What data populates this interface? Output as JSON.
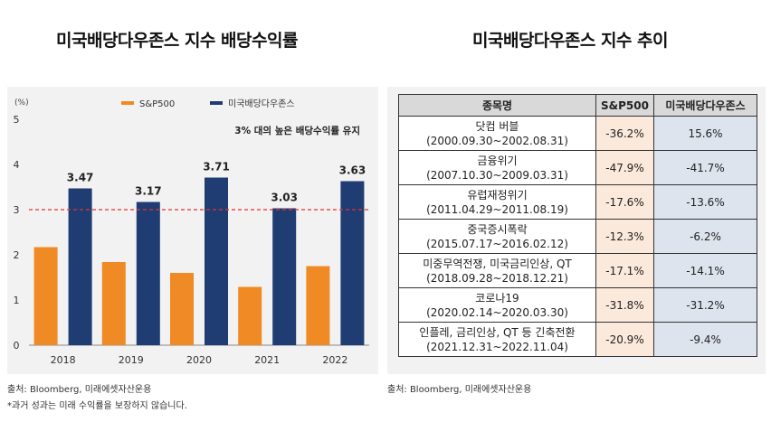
{
  "titles": {
    "left": "미국배당다우존스 지수 배당수익률",
    "right": "미국배당다우존스 지수 추이"
  },
  "colors": {
    "sp500": "#f08a24",
    "dow": "#1f3c73",
    "threshold": "#e3342f",
    "panel": "#f2f2f2"
  },
  "chart_data": {
    "type": "bar",
    "unit_label": "(%)",
    "categories": [
      "2018",
      "2019",
      "2020",
      "2021",
      "2022"
    ],
    "series": [
      {
        "name": "S&P500",
        "values": [
          2.17,
          1.84,
          1.6,
          1.29,
          1.75
        ],
        "show_labels": false
      },
      {
        "name": "미국배당다우존스",
        "values": [
          3.47,
          3.17,
          3.71,
          3.03,
          3.63
        ],
        "show_labels": true
      }
    ],
    "y_ticks": [
      0,
      1,
      2,
      3,
      4,
      5
    ],
    "ylim": [
      0,
      5
    ],
    "threshold": 3,
    "annotation": "3% 대의 높은 배당수익률 유지",
    "legend_position": "top"
  },
  "table": {
    "headers": [
      "종목명",
      "S&P500",
      "미국배당다우존스"
    ],
    "rows": [
      {
        "event": "닷컴 버블",
        "period": "(2000.09.30~2002.08.31)",
        "sp500": "-36.2%",
        "dow": "15.6%"
      },
      {
        "event": "금융위기",
        "period": "(2007.10.30~2009.03.31)",
        "sp500": "-47.9%",
        "dow": "-41.7%"
      },
      {
        "event": "유럽재정위기",
        "period": "(2011.04.29~2011.08.19)",
        "sp500": "-17.6%",
        "dow": "-13.6%"
      },
      {
        "event": "중국증시폭락",
        "period": "(2015.07.17~2016.02.12)",
        "sp500": "-12.3%",
        "dow": "-6.2%"
      },
      {
        "event": "미중무역전쟁, 미국금리인상, QT",
        "period": "(2018.09.28~2018.12.21)",
        "sp500": "-17.1%",
        "dow": "-14.1%"
      },
      {
        "event": "코로나19",
        "period": "(2020.02.14~2020.03.30)",
        "sp500": "-31.8%",
        "dow": "-31.2%"
      },
      {
        "event": "인플레, 금리인상, QT 등 긴축전환",
        "period": "(2021.12.31~2022.11.04)",
        "sp500": "-20.9%",
        "dow": "-9.4%"
      }
    ]
  },
  "footer": {
    "source_left": "출처: Bloomberg, 미래에셋자산운용",
    "note_left": "*과거 성과는 미래 수익률을 보장하지 않습니다.",
    "source_right": "출처: Bloomberg, 미래에셋자산운용"
  }
}
